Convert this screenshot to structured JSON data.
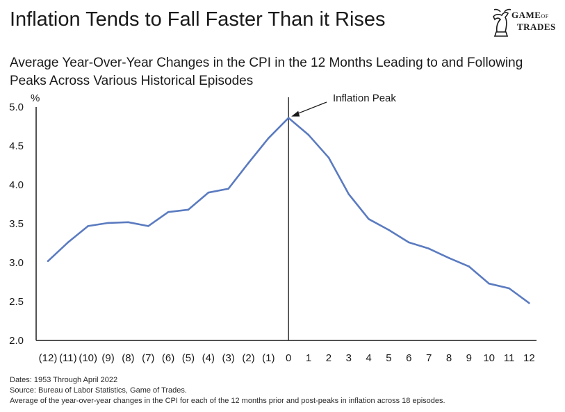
{
  "header": {
    "title": "Inflation Tends to Fall Faster Than it Rises",
    "subtitle": "Average Year-Over-Year Changes in the CPI in the 12 Months Leading to and Following Peaks Across Various Historical Episodes"
  },
  "logo": {
    "line1": "GAME",
    "line1_small": "OF",
    "line2": "TRADES",
    "icon": "bull-chess-knight-icon"
  },
  "colors": {
    "line": "#5b7bc0",
    "axis": "#1a1a1a",
    "text": "#1a1a1a"
  },
  "chart_data": {
    "type": "line",
    "title": "",
    "ylabel": "%",
    "xlabel": "",
    "ylim": [
      2.0,
      5.0
    ],
    "yticks": [
      "5.0",
      "4.5",
      "4.0",
      "3.5",
      "3.0",
      "2.5",
      "2.0"
    ],
    "yticks_values": [
      5.0,
      4.5,
      4.0,
      3.5,
      3.0,
      2.5,
      2.0
    ],
    "categories": [
      "(12)",
      "(11)",
      "(10)",
      "(9)",
      "(8)",
      "(7)",
      "(6)",
      "(5)",
      "(4)",
      "(3)",
      "(2)",
      "(1)",
      "0",
      "1",
      "2",
      "3",
      "4",
      "5",
      "6",
      "7",
      "8",
      "9",
      "10",
      "11",
      "12"
    ],
    "series": [
      {
        "values": [
          3.02,
          3.26,
          3.47,
          3.51,
          3.52,
          3.47,
          3.65,
          3.68,
          3.9,
          3.95,
          4.28,
          4.6,
          4.86,
          4.64,
          4.35,
          3.88,
          3.56,
          3.42,
          3.26,
          3.18,
          3.06,
          2.95,
          2.73,
          2.67,
          2.48
        ]
      }
    ],
    "annotations": [
      {
        "text": "Inflation Peak",
        "at_category": "0"
      }
    ],
    "peak_marker": "vertical line at 0",
    "grid": false
  },
  "notes": {
    "dates": "Dates: 1953 Through April 2022",
    "source": "Source: Bureau of Labor Statistics, Game of Trades.",
    "description": "Average of the year-over-year changes in the CPI for each of the 12 months prior and post-peaks in inflation across 18 episodes."
  }
}
